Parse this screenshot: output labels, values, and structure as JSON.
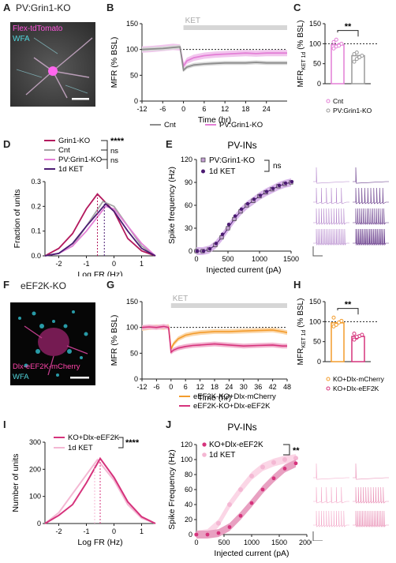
{
  "colors": {
    "cnt": "#8c8c8c",
    "pv_ko": "#e37fd6",
    "pv_ko_fill": "#f2c6ee",
    "grin1_ko": "#b3195d",
    "ket_1d": "#4b1b72",
    "ket_bar": "#d6d6d6",
    "kodlx_mcherry": "#f39c2c",
    "kodlx_eef2k": "#d6337c",
    "ket_light": "#f4b7d3",
    "tdtomato": "#ff55dd",
    "wfa": "#52d6dc",
    "mcherry": "#ff44aa"
  },
  "panels": {
    "A": {
      "letter": "A",
      "title": "PV:Grin1-KO",
      "label1": "Flex-tdTomato",
      "label2": "WFA"
    },
    "B": {
      "letter": "B"
    },
    "C": {
      "letter": "C"
    },
    "D": {
      "letter": "D"
    },
    "E": {
      "letter": "E",
      "title": "PV-INs"
    },
    "F": {
      "letter": "F",
      "title": "eEF2K-KO",
      "label1": "Dlx-eEF2K-mCherry",
      "label2": "WFA"
    },
    "G": {
      "letter": "G"
    },
    "H": {
      "letter": "H"
    },
    "I": {
      "letter": "I"
    },
    "J": {
      "letter": "J",
      "title": "PV-INs"
    }
  },
  "chart_data": [
    {
      "id": "B",
      "type": "line",
      "ket_label": "KET",
      "xlabel": "Time (hr)",
      "ylabel": "MFR (% BSL)",
      "xlim": [
        -12,
        30
      ],
      "ylim": [
        0,
        150
      ],
      "xticks": [
        -12,
        -6,
        0,
        6,
        12,
        18,
        24
      ],
      "yticks": [
        0,
        50,
        100,
        150
      ],
      "series": [
        {
          "name": "Cnt",
          "x": [
            -12,
            -9,
            -6,
            -3,
            -1,
            0,
            1,
            3,
            6,
            9,
            12,
            15,
            18,
            21,
            24,
            27,
            30
          ],
          "y": [
            100,
            101,
            102,
            104,
            105,
            60,
            66,
            70,
            72,
            73,
            74,
            74,
            74,
            75,
            74,
            74,
            74
          ]
        },
        {
          "name": "PV:Grin1-KO",
          "x": [
            -12,
            -9,
            -6,
            -3,
            -1,
            0,
            1,
            3,
            6,
            9,
            12,
            15,
            18,
            21,
            24,
            27,
            30
          ],
          "y": [
            100,
            101,
            103,
            105,
            104,
            68,
            78,
            84,
            88,
            90,
            91,
            92,
            93,
            92,
            93,
            93,
            93
          ]
        }
      ]
    },
    {
      "id": "C",
      "type": "bar",
      "ylabel": "MFR",
      "ylabel_sub": "KET 1d",
      "ylabel_suffix": " (% BSL)",
      "ylim": [
        0,
        150
      ],
      "yticks": [
        0,
        50,
        100,
        150
      ],
      "sig": "**",
      "categories": [
        "Cnt",
        "PV:Grin1-KO"
      ],
      "values": [
        97,
        70
      ],
      "points": [
        [
          88,
          93,
          97,
          100,
          104,
          110,
          95
        ],
        [
          55,
          62,
          67,
          70,
          74,
          78,
          66
        ]
      ]
    },
    {
      "id": "D",
      "type": "line",
      "xlabel": "Log FR (Hz)",
      "ylabel": "Fraction of units",
      "xlim": [
        -2.5,
        1.5
      ],
      "ylim": [
        0,
        0.3
      ],
      "xticks": [
        -2,
        -1,
        0,
        1
      ],
      "yticks": [
        0.0,
        0.1,
        0.2,
        0.3
      ],
      "sig": [
        "****",
        "ns",
        "ns"
      ],
      "series": [
        {
          "name": "Grin1-KO",
          "x": [
            -2.5,
            -2,
            -1.5,
            -1,
            -0.6,
            0,
            0.5,
            1,
            1.5
          ],
          "y": [
            0,
            0.03,
            0.09,
            0.19,
            0.25,
            0.18,
            0.07,
            0.02,
            0
          ]
        },
        {
          "name": "Cnt",
          "x": [
            -2.5,
            -2,
            -1.5,
            -1,
            -0.4,
            0,
            0.5,
            1,
            1.5
          ],
          "y": [
            0,
            0.01,
            0.04,
            0.12,
            0.22,
            0.2,
            0.12,
            0.04,
            0
          ]
        },
        {
          "name": "PV:Grin1-KO",
          "x": [
            -2.5,
            -2,
            -1.5,
            -1,
            -0.3,
            0,
            0.5,
            1,
            1.5
          ],
          "y": [
            0,
            0.01,
            0.04,
            0.1,
            0.2,
            0.19,
            0.12,
            0.05,
            0
          ]
        },
        {
          "name": "1d KET",
          "x": [
            -2.5,
            -2,
            -1.5,
            -1,
            -0.3,
            0,
            0.5,
            1,
            1.5
          ],
          "y": [
            0,
            0.01,
            0.05,
            0.12,
            0.21,
            0.18,
            0.1,
            0.03,
            0
          ]
        }
      ]
    },
    {
      "id": "E",
      "type": "scatter",
      "xlabel": "Injected current (pA)",
      "ylabel": "Spike frequency (Hz)",
      "xlim": [
        0,
        1500
      ],
      "ylim": [
        0,
        120
      ],
      "xticks": [
        0,
        500,
        1000,
        1500
      ],
      "yticks": [
        0,
        30,
        60,
        90,
        120
      ],
      "sig": "ns",
      "series": [
        {
          "name": "PV:Grin1-KO",
          "x": [
            0,
            100,
            200,
            300,
            400,
            500,
            600,
            700,
            800,
            900,
            1000,
            1100,
            1200,
            1300,
            1400,
            1500
          ],
          "y": [
            0,
            0,
            2,
            8,
            18,
            30,
            42,
            52,
            60,
            66,
            72,
            77,
            81,
            85,
            88,
            90
          ]
        },
        {
          "name": "1d KET",
          "x": [
            0,
            100,
            200,
            300,
            400,
            500,
            600,
            700,
            800,
            900,
            1000,
            1100,
            1200,
            1300,
            1400,
            1500
          ],
          "y": [
            0,
            0,
            3,
            10,
            22,
            35,
            46,
            55,
            62,
            68,
            73,
            78,
            82,
            86,
            89,
            91
          ]
        }
      ]
    },
    {
      "id": "G",
      "type": "line",
      "ket_label": "KET",
      "xlabel": "Time (hr)",
      "ylabel": "MFR (% BSL)",
      "xlim": [
        -12,
        48
      ],
      "ylim": [
        0,
        150
      ],
      "xticks": [
        -12,
        -6,
        0,
        6,
        12,
        18,
        24,
        30,
        36,
        42,
        48
      ],
      "yticks": [
        0,
        50,
        100,
        150
      ],
      "series": [
        {
          "name": "eEF2K-KO+Dlx-mCherry",
          "x": [
            -12,
            -9,
            -6,
            -3,
            -1,
            0,
            1,
            3,
            6,
            9,
            12,
            18,
            24,
            30,
            36,
            42,
            46,
            48
          ],
          "y": [
            98,
            100,
            101,
            100,
            102,
            58,
            68,
            78,
            85,
            88,
            90,
            92,
            92,
            93,
            94,
            95,
            92,
            90
          ]
        },
        {
          "name": "eEF2K-KO+Dlx-eEF2K",
          "x": [
            -12,
            -9,
            -6,
            -3,
            -1,
            0,
            1,
            3,
            6,
            9,
            12,
            18,
            24,
            30,
            36,
            42,
            46,
            48
          ],
          "y": [
            100,
            101,
            100,
            102,
            100,
            52,
            56,
            60,
            63,
            65,
            66,
            68,
            66,
            64,
            65,
            66,
            64,
            64
          ]
        }
      ]
    },
    {
      "id": "H",
      "type": "bar",
      "ylabel": "MFR",
      "ylabel_sub": "KET 1d",
      "ylabel_suffix": " (% BSL)",
      "ylim": [
        0,
        150
      ],
      "yticks": [
        0,
        50,
        100,
        150
      ],
      "sig": "**",
      "categories": [
        "KO+Dlx-mCherry",
        "KO+Dlx-eEF2K"
      ],
      "values": [
        97,
        63
      ],
      "points": [
        [
          88,
          92,
          98,
          102,
          110
        ],
        [
          55,
          60,
          64,
          67,
          70,
          62
        ]
      ]
    },
    {
      "id": "I",
      "type": "line",
      "xlabel": "Log FR (Hz)",
      "ylabel": "Number of units",
      "xlim": [
        -2.5,
        1.5
      ],
      "ylim": [
        0,
        300
      ],
      "xticks": [
        -2,
        -1,
        0,
        1
      ],
      "yticks": [
        0,
        100,
        200,
        300
      ],
      "sig": "****",
      "series": [
        {
          "name": "KO+Dlx-eEF2K",
          "x": [
            -2.5,
            -2,
            -1.5,
            -1,
            -0.5,
            0,
            0.5,
            1,
            1.5
          ],
          "y": [
            0,
            30,
            70,
            150,
            240,
            170,
            80,
            25,
            0
          ]
        },
        {
          "name": "1d KET",
          "x": [
            -2.5,
            -2,
            -1.5,
            -1,
            -0.6,
            0,
            0.5,
            1,
            1.5
          ],
          "y": [
            0,
            40,
            110,
            180,
            235,
            160,
            70,
            20,
            0
          ]
        }
      ]
    },
    {
      "id": "J",
      "type": "scatter",
      "xlabel": "Injected current (pA)",
      "ylabel": "Spike Frequency (Hz)",
      "xlim": [
        0,
        2000
      ],
      "ylim": [
        0,
        120
      ],
      "xticks": [
        0,
        500,
        1000,
        1500,
        2000
      ],
      "yticks": [
        0,
        20,
        40,
        60,
        80,
        100,
        120
      ],
      "sig": "**",
      "series": [
        {
          "name": "KO+Dlx-eEF2K",
          "x": [
            0,
            200,
            400,
            600,
            800,
            1000,
            1200,
            1400,
            1600,
            1800
          ],
          "y": [
            0,
            0,
            2,
            10,
            25,
            42,
            60,
            75,
            88,
            95
          ]
        },
        {
          "name": "1d KET",
          "x": [
            0,
            200,
            400,
            600,
            800,
            1000,
            1200,
            1400,
            1600,
            1800
          ],
          "y": [
            0,
            2,
            15,
            40,
            60,
            78,
            90,
            96,
            100,
            102
          ]
        }
      ]
    }
  ]
}
